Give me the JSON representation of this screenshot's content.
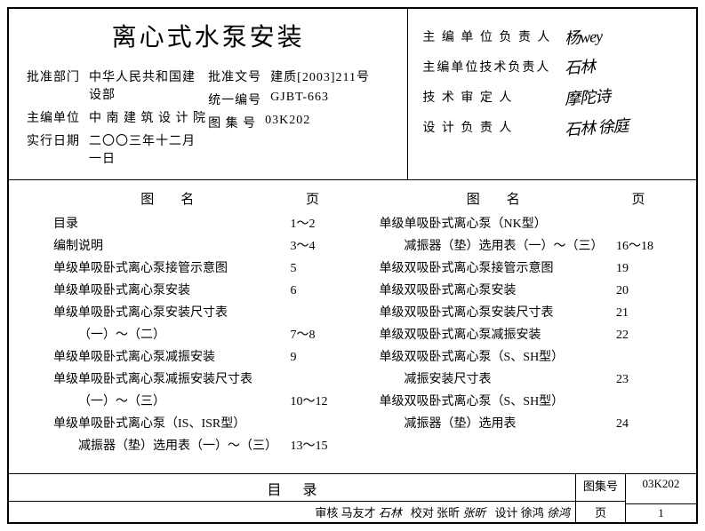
{
  "header": {
    "title": "离心式水泵安装",
    "left_meta": [
      {
        "label": "批准部门",
        "value": "中华人民共和国建设部"
      },
      {
        "label": "主编单位",
        "value": "中 南 建 筑 设 计 院"
      },
      {
        "label": "实行日期",
        "value": "二〇〇三年十二月一日"
      }
    ],
    "right_meta": [
      {
        "label": "批准文号",
        "value": "建质[2003]211号"
      },
      {
        "label": "统一编号",
        "value": "GJBT-663"
      },
      {
        "label": "图 集 号",
        "value": "03K202"
      }
    ],
    "signatures": [
      {
        "label": "主 编 单 位 负 责 人",
        "mark": "杨wey"
      },
      {
        "label": "主编单位技术负责人",
        "mark": "石林"
      },
      {
        "label": "技 术 审 定 人",
        "mark": "摩陀诗"
      },
      {
        "label": "设 计 负 责 人",
        "mark": "石林 徐庭"
      }
    ]
  },
  "toc": {
    "head_name": "图名",
    "head_page": "页",
    "left": [
      {
        "name": "目录",
        "page": "1～2",
        "indent": false
      },
      {
        "name": "编制说明",
        "page": "3～4",
        "indent": false
      },
      {
        "name": "单级单吸卧式离心泵接管示意图",
        "page": "5",
        "indent": false
      },
      {
        "name": "单级单吸卧式离心泵安装",
        "page": "6",
        "indent": false
      },
      {
        "name": "单级单吸卧式离心泵安装尺寸表",
        "page": "",
        "indent": false
      },
      {
        "name": "（一）～（二）",
        "page": "7～8",
        "indent": true
      },
      {
        "name": "单级单吸卧式离心泵减振安装",
        "page": "9",
        "indent": false
      },
      {
        "name": "单级单吸卧式离心泵减振安装尺寸表",
        "page": "",
        "indent": false
      },
      {
        "name": "（一）～（三）",
        "page": "10～12",
        "indent": true
      },
      {
        "name": "单级单吸卧式离心泵（IS、ISR型）",
        "page": "",
        "indent": false
      },
      {
        "name": "减振器（垫）选用表（一）～（三）",
        "page": "13～15",
        "indent": true
      }
    ],
    "right": [
      {
        "name": "单级单吸卧式离心泵（NK型）",
        "page": "",
        "indent": false
      },
      {
        "name": "减振器（垫）选用表（一）～（三）",
        "page": "16～18",
        "indent": true
      },
      {
        "name": "单级双吸卧式离心泵接管示意图",
        "page": "19",
        "indent": false
      },
      {
        "name": "单级双吸卧式离心泵安装",
        "page": "20",
        "indent": false
      },
      {
        "name": "单级双吸卧式离心泵安装尺寸表",
        "page": "21",
        "indent": false
      },
      {
        "name": "单级双吸卧式离心泵减振安装",
        "page": "22",
        "indent": false
      },
      {
        "name": "单级双吸卧式离心泵（S、SH型）",
        "page": "",
        "indent": false
      },
      {
        "name": "减振安装尺寸表",
        "page": "23",
        "indent": true
      },
      {
        "name": "单级双吸卧式离心泵（S、SH型）",
        "page": "",
        "indent": false
      },
      {
        "name": "减振器（垫）选用表",
        "page": "24",
        "indent": true
      }
    ]
  },
  "footer": {
    "title": "目录",
    "credits": [
      {
        "label": "审核",
        "value": "马友才",
        "sig": "石林"
      },
      {
        "label": "校对",
        "value": "张昕",
        "sig": "张昕"
      },
      {
        "label": "设计",
        "value": "徐鸿",
        "sig": "徐鸿"
      }
    ],
    "set_label": "图集号",
    "set_value": "03K202",
    "page_label": "页",
    "page_value": "1"
  }
}
